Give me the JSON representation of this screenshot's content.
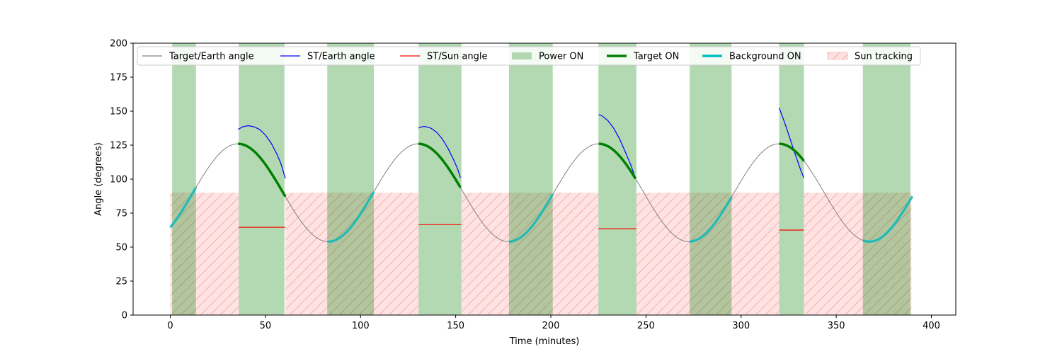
{
  "chart_data": {
    "type": "line",
    "xlabel": "Time (minutes)",
    "ylabel": "Angle (degrees)",
    "xlim": [
      -20,
      410
    ],
    "ylim": [
      0,
      200
    ],
    "xticks": [
      0,
      50,
      100,
      150,
      200,
      250,
      300,
      350,
      400
    ],
    "yticks": [
      0,
      25,
      50,
      75,
      100,
      125,
      150,
      175,
      200
    ],
    "grid": false,
    "legend_position": "top",
    "legend": [
      {
        "label": "Target/Earth angle",
        "style": "line",
        "color": "#808080"
      },
      {
        "label": "ST/Earth angle",
        "style": "line",
        "color": "#0000ff"
      },
      {
        "label": "ST/Sun angle",
        "style": "line",
        "color": "#ff0000"
      },
      {
        "label": "Power ON",
        "style": "patch",
        "color": "#b2d8b2"
      },
      {
        "label": "Target ON",
        "style": "thick-line",
        "color": "#008000"
      },
      {
        "label": "Background ON",
        "style": "thick-line",
        "color": "#00bfbf"
      },
      {
        "label": "Sun tracking",
        "style": "hatch",
        "color": "#ffe0e0"
      }
    ],
    "target_earth_angle": {
      "period_minutes": 94.8,
      "t_at_max": 35.6,
      "max_deg": 126,
      "min_deg": 54,
      "start": 0,
      "end": 390
    },
    "power_on_intervals": [
      [
        1,
        13.5
      ],
      [
        36,
        60
      ],
      [
        82.5,
        107
      ],
      [
        130.5,
        153
      ],
      [
        178,
        201
      ],
      [
        225,
        245
      ],
      [
        273,
        295
      ],
      [
        320,
        333
      ],
      [
        364,
        389
      ]
    ],
    "sun_tracking": {
      "y_max_deg": 90,
      "intervals": [
        [
          0,
          36
        ],
        [
          60.5,
          130.5
        ],
        [
          153,
          225
        ],
        [
          245,
          320
        ],
        [
          333,
          389.5
        ]
      ]
    },
    "target_on_intervals": [
      [
        35.6,
        60.5
      ],
      [
        130.4,
        152.5
      ],
      [
        225.2,
        244.5
      ],
      [
        320,
        333
      ]
    ],
    "background_on_intervals": [
      [
        0,
        13.5
      ],
      [
        82.5,
        107
      ],
      [
        178,
        201
      ],
      [
        273,
        295
      ],
      [
        364,
        390
      ]
    ],
    "st_earth_angle": [
      [
        [
          35.6,
          136.5
        ],
        [
          38,
          138.5
        ],
        [
          41,
          139.3
        ],
        [
          44,
          138.5
        ],
        [
          47,
          136.5
        ],
        [
          50,
          132.5
        ],
        [
          53,
          126.5
        ],
        [
          56,
          118.5
        ],
        [
          58,
          112
        ],
        [
          60.5,
          100.5
        ]
      ],
      [
        [
          130.4,
          137.5
        ],
        [
          132,
          138.5
        ],
        [
          134,
          138.7
        ],
        [
          137,
          137.5
        ],
        [
          140,
          134.5
        ],
        [
          143,
          129.5
        ],
        [
          146,
          122.5
        ],
        [
          149,
          114
        ],
        [
          151,
          107.5
        ],
        [
          152.5,
          101
        ]
      ],
      [
        [
          225.2,
          147.5
        ],
        [
          227,
          146.5
        ],
        [
          230,
          143
        ],
        [
          233,
          137.5
        ],
        [
          236,
          130
        ],
        [
          239,
          120.5
        ],
        [
          242,
          110.5
        ],
        [
          244.5,
          100.5
        ]
      ],
      [
        [
          320,
          152.5
        ],
        [
          322,
          145
        ],
        [
          324,
          137
        ],
        [
          326,
          128.5
        ],
        [
          328,
          120
        ],
        [
          330,
          112
        ],
        [
          331.5,
          106
        ],
        [
          333,
          101
        ]
      ]
    ],
    "st_sun_angle": [
      {
        "x": [
          36,
          60.5
        ],
        "y": 64.5
      },
      {
        "x": [
          130.5,
          153
        ],
        "y": 66.5
      },
      {
        "x": [
          225,
          245
        ],
        "y": 63.5
      },
      {
        "x": [
          320,
          333
        ],
        "y": 62.5
      }
    ]
  }
}
